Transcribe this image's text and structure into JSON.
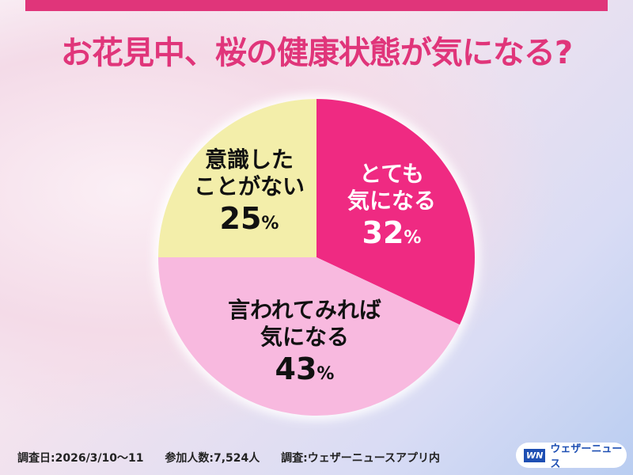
{
  "title": "お花見中、桜の健康状態が気になる?",
  "chart_data": {
    "type": "pie",
    "title": "お花見中、桜の健康状態が気になる?",
    "slices": [
      {
        "label_lines": [
          "とても",
          "気になる"
        ],
        "value": 32,
        "display": "32",
        "color": "#ef2a82",
        "text_color": "#ffffff"
      },
      {
        "label_lines": [
          "言われてみれば",
          "気になる"
        ],
        "value": 43,
        "display": "43",
        "color": "#f8b9df",
        "text_color": "#111111"
      },
      {
        "label_lines": [
          "意識した",
          "ことがない"
        ],
        "value": 25,
        "display": "25",
        "color": "#f3eeaa",
        "text_color": "#111111"
      }
    ],
    "unit": "%",
    "start": "top",
    "direction": "clockwise"
  },
  "footer": {
    "date": "調査日:2026/3/10〜11",
    "participants": "参加人数:7,524人",
    "survey": "調査:ウェザーニュースアプリ内"
  },
  "logo": {
    "mark": "WN",
    "name": "ウェザーニュース",
    "color": "#1e4fb3"
  }
}
